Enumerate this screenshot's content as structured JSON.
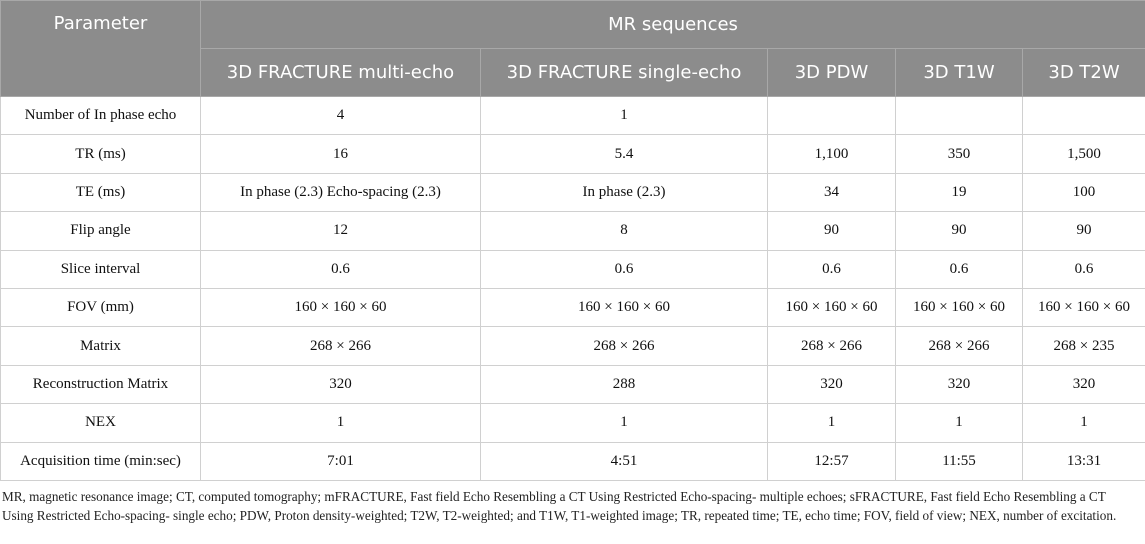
{
  "table": {
    "parameter_header": "Parameter",
    "group_header": "MR sequences",
    "columns": [
      "3D FRACTURE multi-echo",
      "3D FRACTURE single-echo",
      "3D PDW",
      "3D T1W",
      "3D T2W"
    ],
    "rows": [
      [
        "Number of In phase echo",
        "4",
        "1",
        null,
        null,
        null
      ],
      [
        "TR (ms)",
        "16",
        "5.4",
        "1,100",
        "350",
        "1,500"
      ],
      [
        "TE (ms)",
        "In phase (2.3) Echo-spacing (2.3)",
        "In phase (2.3)",
        "34",
        "19",
        "100"
      ],
      [
        "Flip angle",
        "12",
        "8",
        "90",
        "90",
        "90"
      ],
      [
        "Slice interval",
        "0.6",
        "0.6",
        "0.6",
        "0.6",
        "0.6"
      ],
      [
        "FOV (mm)",
        "160 × 160 × 60",
        "160 × 160 × 60",
        "160 × 160 × 60",
        "160 × 160 × 60",
        "160 × 160 × 60"
      ],
      [
        "Matrix",
        "268 × 266",
        "268 × 266",
        "268 × 266",
        "268 × 266",
        "268 × 235"
      ],
      [
        "Reconstruction Matrix",
        "320",
        "288",
        "320",
        "320",
        "320"
      ],
      [
        "NEX",
        "1",
        "1",
        "1",
        "1",
        "1"
      ],
      [
        "Acquisition time (min:sec)",
        "7:01",
        "4:51",
        "12:57",
        "11:55",
        "13:31"
      ]
    ]
  },
  "footnote": "MR, magnetic resonance image; CT, computed tomography; mFRACTURE, Fast field Echo Resembling a CT Using Restricted Echo-spacing- multiple echoes; sFRACTURE, Fast field Echo Resembling a CT Using Restricted Echo-spacing- single echo; PDW, Proton density-weighted; T2W, T2-weighted; and T1W, T1-weighted image; TR, repeated time; TE, echo time; FOV, field of view; NEX, number of excitation."
}
